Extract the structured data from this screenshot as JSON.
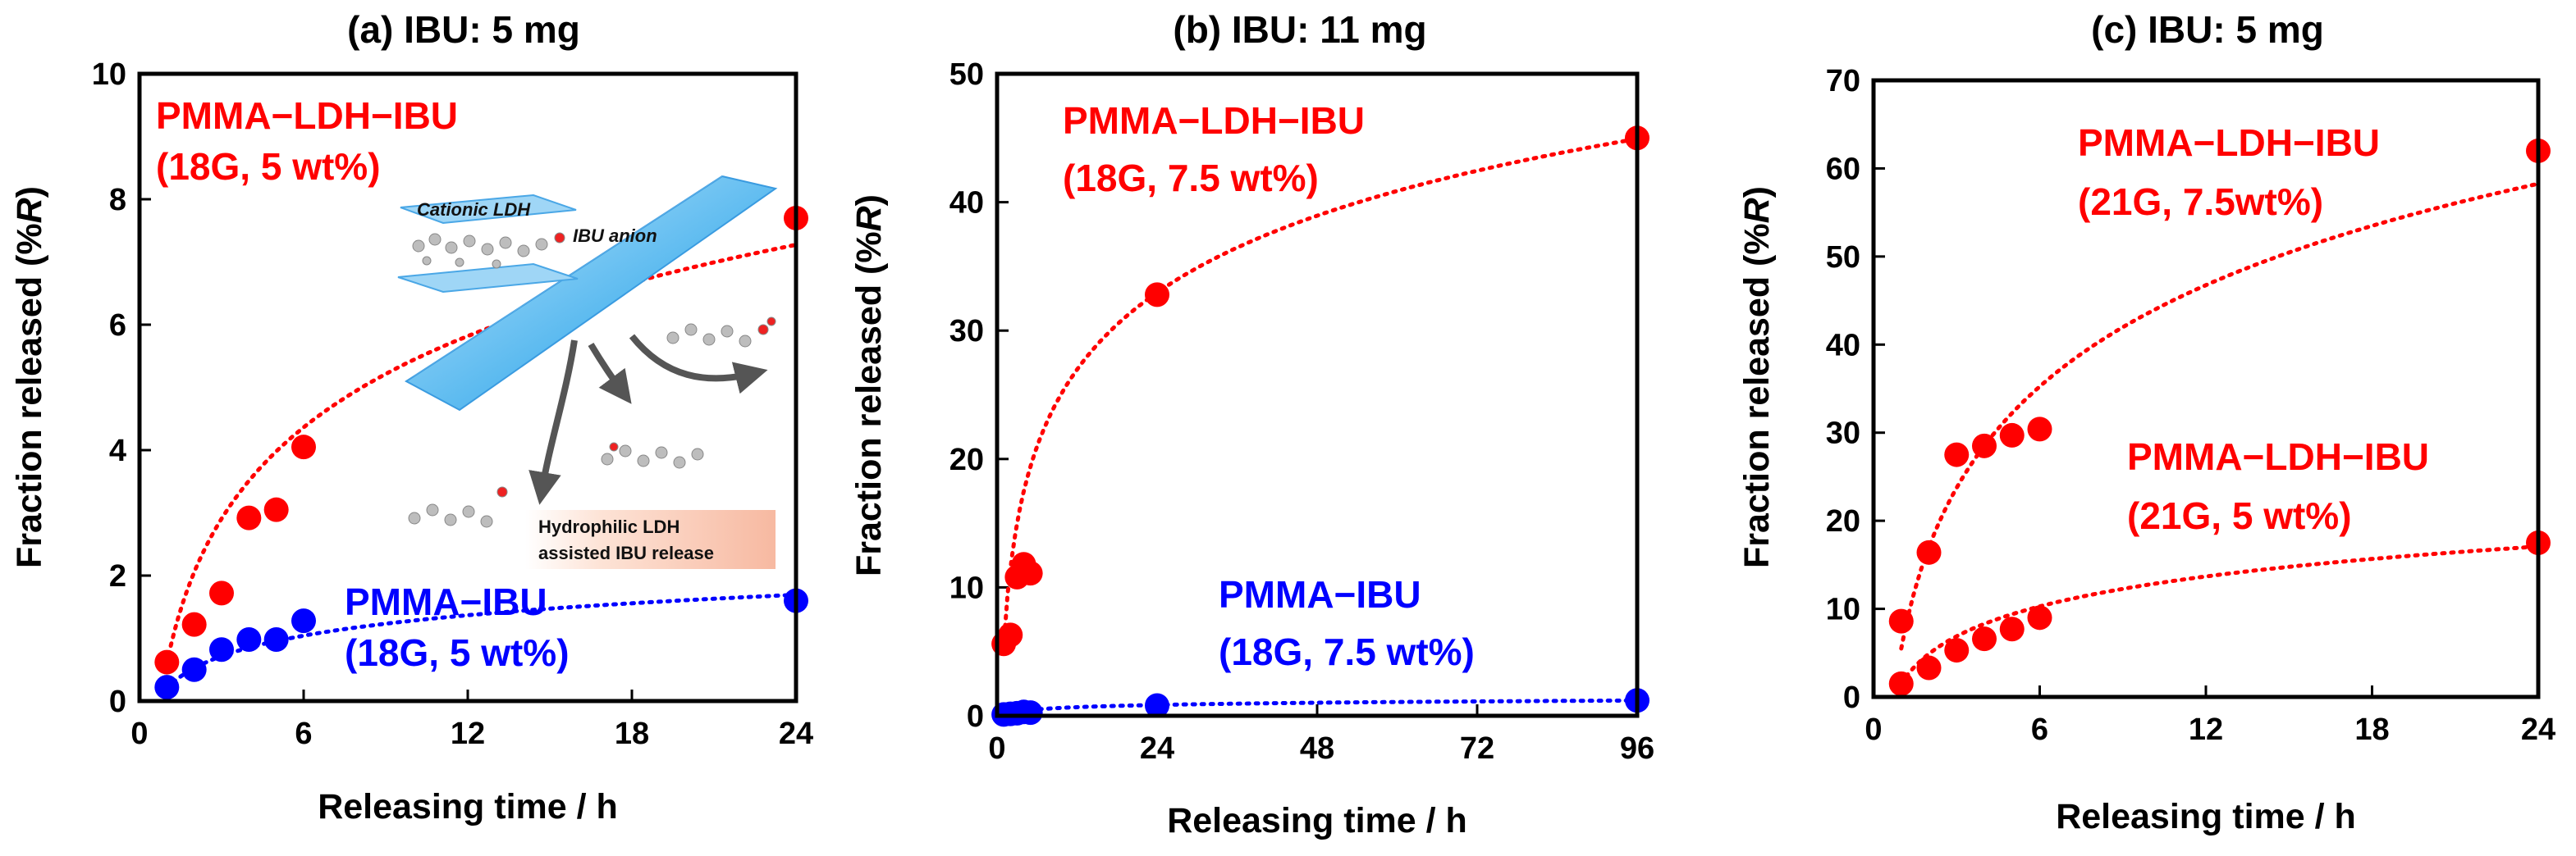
{
  "chart_data": [
    {
      "type": "scatter",
      "title": "(a) IBU: 5 mg",
      "xlabel": "Releasing time / h",
      "ylabel_prefix": "Fraction released (%",
      "ylabel_var": "R",
      "ylabel_suffix": ")",
      "xlim": [
        0,
        24
      ],
      "ylim": [
        0,
        10
      ],
      "xticks": [
        0,
        6,
        12,
        18,
        24
      ],
      "yticks": [
        0,
        2,
        4,
        6,
        8,
        10
      ],
      "series": [
        {
          "name": "PMMA-LDH-IBU (18G, 5 wt%)",
          "color": "#ff0000",
          "points": [
            [
              1,
              0.62
            ],
            [
              2,
              1.22
            ],
            [
              3,
              1.72
            ],
            [
              4,
              2.92
            ],
            [
              5,
              3.05
            ],
            [
              6,
              4.05
            ],
            [
              24,
              7.7
            ]
          ],
          "fit": {
            "a": 0.6,
            "b": 2.1
          }
        },
        {
          "name": "PMMA-IBU (18G, 5 wt%)",
          "color": "#0000ff",
          "points": [
            [
              1,
              0.22
            ],
            [
              2,
              0.5
            ],
            [
              3,
              0.82
            ],
            [
              4,
              0.98
            ],
            [
              5,
              0.98
            ],
            [
              6,
              1.28
            ],
            [
              24,
              1.6
            ]
          ],
          "fit": {
            "a": 0.2,
            "b": 0.47
          }
        }
      ],
      "labels": [
        {
          "line1": "PMMA−LDH−IBU",
          "line2": "(18G, 5 wt%)",
          "color": "#ff0000"
        },
        {
          "line1": "PMMA−IBU",
          "line2": "(18G, 5 wt%)",
          "color": "#0000ff"
        }
      ],
      "inset": {
        "cationic_label": "Cationic LDH",
        "anion_label": "IBU anion",
        "release_line1": "Hydrophilic LDH",
        "release_line2": "assisted IBU release"
      }
    },
    {
      "type": "scatter",
      "title": "(b) IBU: 11  mg",
      "xlabel": "Releasing time / h",
      "ylabel_prefix": "Fraction released (%",
      "ylabel_var": "R",
      "ylabel_suffix": ")",
      "xlim": [
        0,
        96
      ],
      "ylim": [
        0,
        50
      ],
      "xticks": [
        0,
        24,
        48,
        72,
        96
      ],
      "yticks": [
        0,
        10,
        20,
        30,
        40,
        50
      ],
      "series": [
        {
          "name": "PMMA-LDH-IBU (18G, 7.5 wt%)",
          "color": "#ff0000",
          "points": [
            [
              1,
              5.6
            ],
            [
              2,
              6.3
            ],
            [
              3,
              10.8
            ],
            [
              4,
              11.8
            ],
            [
              5,
              11.1
            ],
            [
              24,
              32.8
            ],
            [
              96,
              45
            ]
          ],
          "fit": {
            "a": 5.5,
            "b": 8.64
          }
        },
        {
          "name": "PMMA-IBU (18G, 7.5 wt%)",
          "color": "#0000ff",
          "points": [
            [
              1,
              0.1
            ],
            [
              2,
              0.15
            ],
            [
              3,
              0.2
            ],
            [
              4,
              0.3
            ],
            [
              5,
              0.25
            ],
            [
              24,
              0.8
            ],
            [
              96,
              1.2
            ]
          ],
          "fit": {
            "a": 0.05,
            "b": 0.25
          }
        }
      ],
      "labels": [
        {
          "line1": "PMMA−LDH−IBU",
          "line2": "(18G, 7.5 wt%)",
          "color": "#ff0000"
        },
        {
          "line1": "PMMA−IBU",
          "line2": "(18G, 7.5 wt%)",
          "color": "#0000ff"
        }
      ]
    },
    {
      "type": "scatter",
      "title": "(c) IBU: 5 mg",
      "xlabel": "Releasing time / h",
      "ylabel_prefix": "Fraction released (%",
      "ylabel_var": "R",
      "ylabel_suffix": ")",
      "xlim": [
        0,
        24
      ],
      "ylim": [
        0,
        70
      ],
      "xticks": [
        0,
        6,
        12,
        18,
        24
      ],
      "yticks": [
        0,
        10,
        20,
        30,
        40,
        50,
        60,
        70
      ],
      "series": [
        {
          "name": "PMMA-LDH-IBU (21G, 7.5wt%)",
          "color": "#ff0000",
          "points": [
            [
              1,
              8.6
            ],
            [
              2,
              16.4
            ],
            [
              3,
              27.5
            ],
            [
              4,
              28.5
            ],
            [
              5,
              29.7
            ],
            [
              6,
              30.4
            ],
            [
              24,
              62
            ]
          ],
          "fit": {
            "a": 5.5,
            "b": 16.6
          }
        },
        {
          "name": "PMMA-LDH-IBU (21G, 5 wt%)",
          "color": "#ff0000",
          "points": [
            [
              1,
              1.5
            ],
            [
              2,
              3.3
            ],
            [
              3,
              5.3
            ],
            [
              4,
              6.6
            ],
            [
              5,
              7.7
            ],
            [
              6,
              9.0
            ],
            [
              24,
              17.5
            ]
          ],
          "fit": {
            "a": 1.5,
            "b": 4.9
          }
        }
      ],
      "labels": [
        {
          "line1": "PMMA−LDH−IBU",
          "line2": "(21G, 7.5wt%)",
          "color": "#ff0000"
        },
        {
          "line1": "PMMA−LDH−IBU",
          "line2": "(21G, 5 wt%)",
          "color": "#ff0000"
        }
      ]
    }
  ]
}
